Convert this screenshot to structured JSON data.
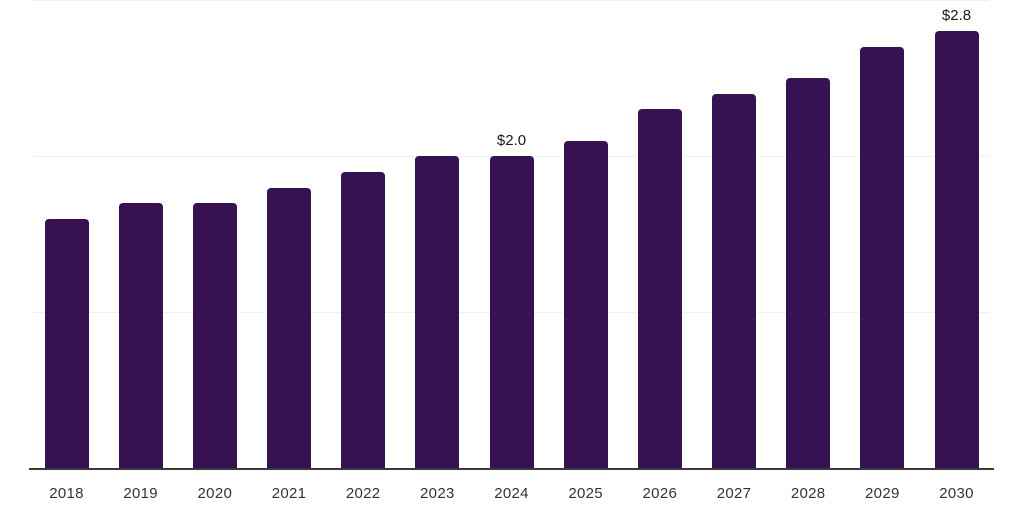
{
  "chart_data": {
    "type": "bar",
    "title": "",
    "xlabel": "",
    "ylabel": "",
    "categories": [
      "2018",
      "2019",
      "2020",
      "2021",
      "2022",
      "2023",
      "2024",
      "2025",
      "2026",
      "2027",
      "2028",
      "2029",
      "2030"
    ],
    "values": [
      1.6,
      1.7,
      1.7,
      1.8,
      1.9,
      2.0,
      2.0,
      2.1,
      2.3,
      2.4,
      2.5,
      2.7,
      2.8
    ],
    "data_labels": [
      {
        "index": 6,
        "text": "$2.0"
      },
      {
        "index": 12,
        "text": "$2.8"
      }
    ],
    "ylim": [
      0,
      3
    ],
    "gridline_values": [
      1,
      2,
      3
    ],
    "grid": "horizontal-only",
    "legend": "none",
    "y_axis_ticks_visible": false,
    "colors": {
      "bar": "#371252",
      "axis": "#3a3a3a",
      "gridline": "#f0f0f0",
      "x_label": "#333333",
      "data_label": "#1a1a1a",
      "background": "#ffffff"
    }
  }
}
